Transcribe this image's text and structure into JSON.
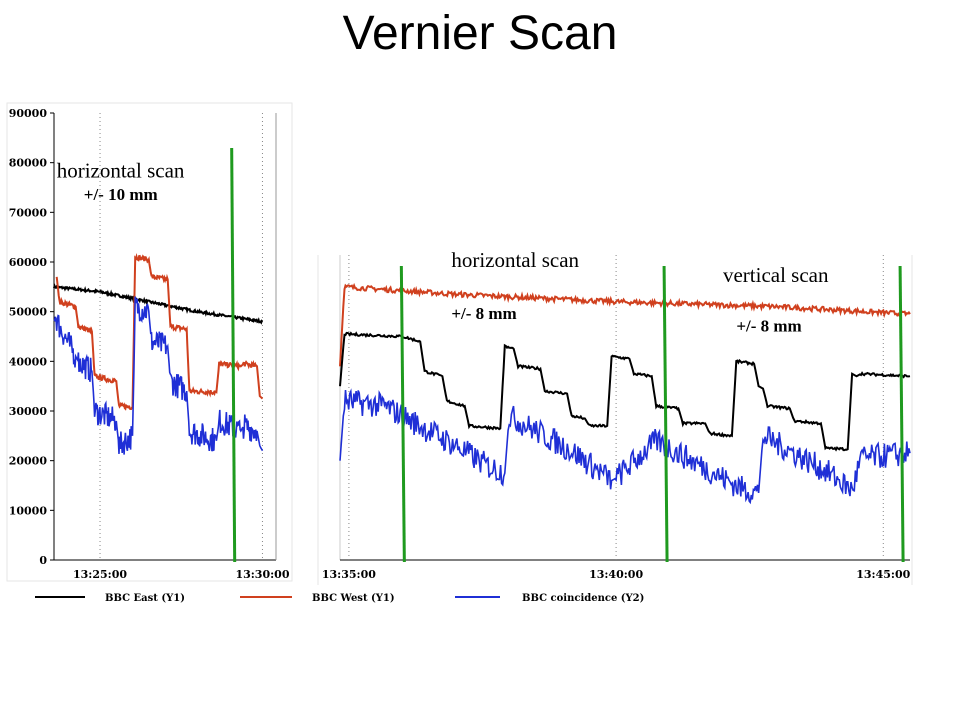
{
  "title": "Vernier Scan",
  "chart_data": [
    {
      "type": "line",
      "xlabel": "",
      "ylabel": "",
      "ylim": [
        0,
        90000
      ],
      "yticks": [
        0,
        10000,
        20000,
        30000,
        40000,
        50000,
        60000,
        70000,
        80000,
        90000
      ],
      "x_range": [
        "13:23:35",
        "13:30:25"
      ],
      "xticks": [
        "13:25:00",
        "13:30:00"
      ],
      "annotations": [
        {
          "text": "horizontal scan",
          "at": "13:23:40",
          "y": 77000
        },
        {
          "text": "+/- 10 mm",
          "at": "13:24:30",
          "y": 72500
        }
      ],
      "marker_lines_at": [
        "13:29:05"
      ],
      "series": [
        {
          "name": "BBC East (Y1)",
          "x": [
            "13:23:35",
            "13:25:00",
            "13:26:30",
            "13:28:00",
            "13:30:00"
          ],
          "y": [
            55000,
            54000,
            52000,
            50000,
            48000
          ]
        },
        {
          "name": "BBC West (Y1)",
          "x": [
            "13:23:40",
            "13:23:45",
            "13:24:15",
            "13:24:20",
            "13:24:45",
            "13:24:50",
            "13:25:30",
            "13:25:35",
            "13:26:00",
            "13:26:05",
            "13:26:30",
            "13:26:35",
            "13:27:05",
            "13:27:10",
            "13:27:40",
            "13:27:45",
            "13:28:35",
            "13:28:40",
            "13:29:20",
            "13:29:25",
            "13:29:50",
            "13:29:55",
            "13:30:00"
          ],
          "y": [
            57000,
            52000,
            51000,
            47000,
            46000,
            37000,
            36000,
            31000,
            30800,
            61000,
            60500,
            57000,
            56500,
            47000,
            46500,
            34000,
            33800,
            39500,
            39000,
            39500,
            39000,
            33000,
            32500
          ]
        },
        {
          "name": "BBC coincidence (Y2)",
          "x": [
            "13:23:35",
            "13:23:45",
            "13:24:15",
            "13:24:20",
            "13:24:45",
            "13:24:50",
            "13:25:30",
            "13:25:35",
            "13:26:00",
            "13:26:05",
            "13:26:30",
            "13:26:35",
            "13:27:05",
            "13:27:10",
            "13:27:40",
            "13:27:45",
            "13:28:35",
            "13:28:40",
            "13:29:20",
            "13:29:25",
            "13:29:50",
            "13:29:55",
            "13:30:00"
          ],
          "y": [
            50000,
            47000,
            41000,
            40000,
            38000,
            30000,
            28000,
            23000,
            25000,
            51000,
            50000,
            44000,
            43000,
            36000,
            34000,
            26000,
            24000,
            28000,
            26000,
            27000,
            26000,
            23000,
            22000
          ]
        }
      ]
    },
    {
      "type": "line",
      "ylim": [
        0,
        90000
      ],
      "x_range": [
        "13:34:50",
        "13:45:30"
      ],
      "xticks": [
        "13:35:00",
        "13:40:00",
        "13:45:00"
      ],
      "annotations": [
        {
          "text": "horizontal scan",
          "at": "13:36:55",
          "y": 59000
        },
        {
          "text": "+/- 8 mm",
          "at": "13:36:55",
          "y": 48500
        },
        {
          "text": "vertical scan",
          "at": "13:42:00",
          "y": 56000
        },
        {
          "text": "+/- 8 mm",
          "at": "13:42:15",
          "y": 46000
        }
      ],
      "marker_lines_at": [
        "13:36:00",
        "13:40:55",
        "13:45:20"
      ],
      "series": [
        {
          "name": "BBC West (Y1)",
          "x": [
            "13:34:50",
            "13:34:55",
            "13:37:00",
            "13:40:00",
            "13:43:00",
            "13:45:30"
          ],
          "y": [
            39000,
            55000,
            53500,
            52000,
            51000,
            49500
          ]
        },
        {
          "name": "BBC East (Y1)",
          "x": [
            "13:34:50",
            "13:34:55",
            "13:36:00",
            "13:36:20",
            "13:36:25",
            "13:36:45",
            "13:36:50",
            "13:37:10",
            "13:37:15",
            "13:37:50",
            "13:37:55",
            "13:38:05",
            "13:38:10",
            "13:38:35",
            "13:38:40",
            "13:39:05",
            "13:39:10",
            "13:39:25",
            "13:39:30",
            "13:39:50",
            "13:39:55",
            "13:40:15",
            "13:40:20",
            "13:40:40",
            "13:40:45",
            "13:41:10",
            "13:41:15",
            "13:41:40",
            "13:41:45",
            "13:42:10",
            "13:42:15",
            "13:42:35",
            "13:42:40",
            "13:42:45",
            "13:42:50",
            "13:43:15",
            "13:43:20",
            "13:43:50",
            "13:43:55",
            "13:44:20",
            "13:44:25",
            "13:44:30",
            "13:44:35",
            "13:45:30"
          ],
          "y": [
            35000,
            45500,
            45000,
            44000,
            38000,
            37000,
            32000,
            31000,
            27000,
            26500,
            43000,
            42500,
            39000,
            38500,
            34000,
            33500,
            29000,
            28500,
            27000,
            27000,
            41000,
            40500,
            37500,
            37000,
            31000,
            30500,
            27500,
            27500,
            25500,
            25000,
            40000,
            39500,
            35000,
            34500,
            31000,
            30500,
            28000,
            27500,
            22500,
            22300,
            37500,
            37000,
            37500,
            37000
          ]
        },
        {
          "name": "BBC coincidence (Y2)",
          "x": [
            "13:34:50",
            "13:34:55",
            "13:35:40",
            "13:36:00",
            "13:36:30",
            "13:37:00",
            "13:37:35",
            "13:37:55",
            "13:38:00",
            "13:38:40",
            "13:39:10",
            "13:39:40",
            "13:39:55",
            "13:40:00",
            "13:40:45",
            "13:41:15",
            "13:41:50",
            "13:42:20",
            "13:42:40",
            "13:42:45",
            "13:43:25",
            "13:43:55",
            "13:44:25",
            "13:44:35",
            "13:45:30"
          ],
          "y": [
            20000,
            32000,
            31000,
            29000,
            26000,
            23000,
            19000,
            17500,
            29000,
            25000,
            22000,
            18000,
            16000,
            16500,
            24000,
            21000,
            17500,
            14500,
            13500,
            25000,
            21000,
            18000,
            14000,
            20500,
            21500
          ]
        }
      ]
    }
  ],
  "legend": [
    {
      "label": "BBC East (Y1)",
      "color": "#000000"
    },
    {
      "label": "BBC West (Y1)",
      "color": "#d0401e"
    },
    {
      "label": "BBC coincidence (Y2)",
      "color": "#1f2fd6"
    }
  ],
  "colors": {
    "bbc_east": "#000000",
    "bbc_west": "#d0401e",
    "bbc_coincidence": "#1f2fd6",
    "marker_line": "#1f9a1f"
  }
}
